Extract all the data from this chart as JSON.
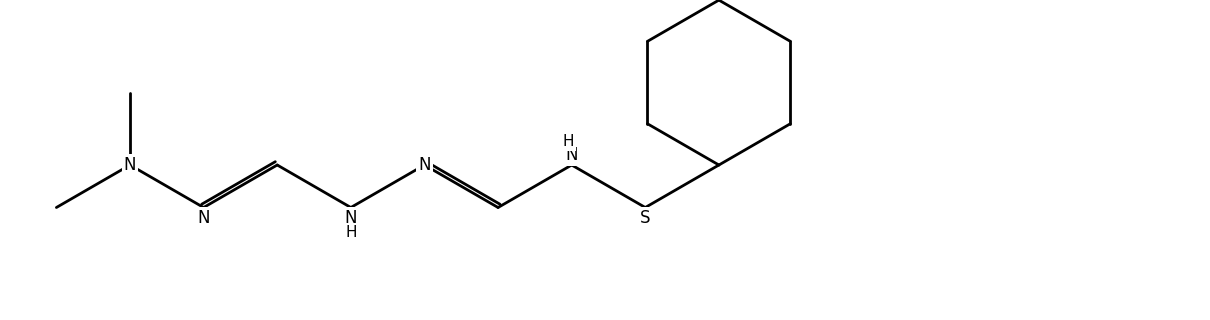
{
  "bg_color": "#ffffff",
  "line_color": "#000000",
  "line_width": 2.0,
  "font_size": 12,
  "font_family": "DejaVu Sans",
  "figsize": [
    12.1,
    3.2
  ],
  "dpi": 100,
  "xlim": [
    0,
    121
  ],
  "ylim": [
    0,
    32
  ]
}
